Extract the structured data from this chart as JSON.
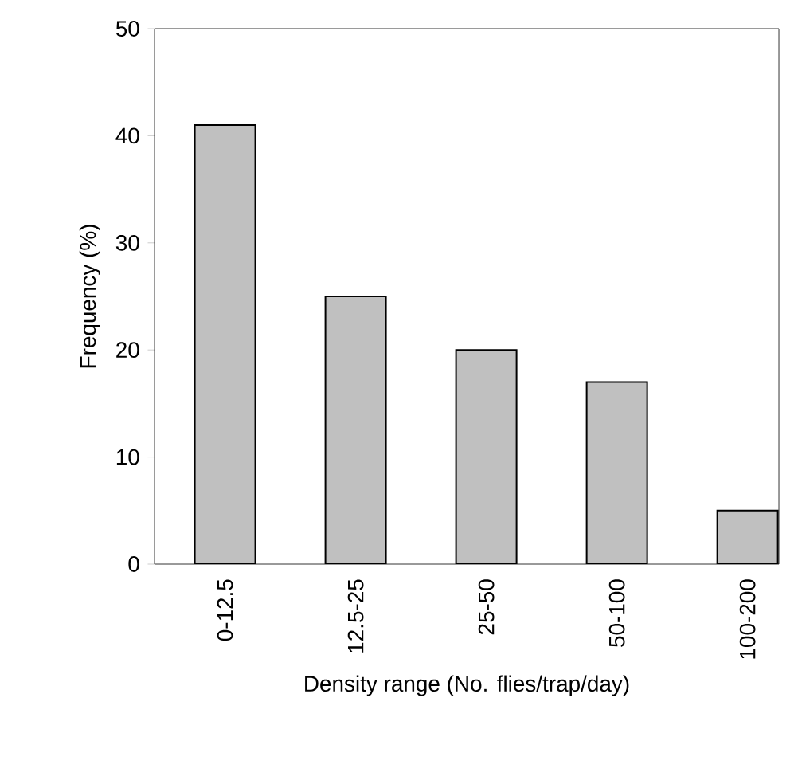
{
  "chart_data": {
    "type": "bar",
    "xlabel": "Density range (No. flies/trap/day)",
    "ylabel": "Frequency (%)",
    "categories": [
      "0-12.5",
      "12.5-25",
      "25-50",
      "50-100",
      "100-200"
    ],
    "values": [
      41,
      25,
      20,
      17,
      5
    ],
    "color": "#c0c0c0",
    "ylim": [
      0,
      50
    ],
    "yticks": [
      0,
      10,
      20,
      30,
      40,
      50
    ],
    "grid": false
  }
}
